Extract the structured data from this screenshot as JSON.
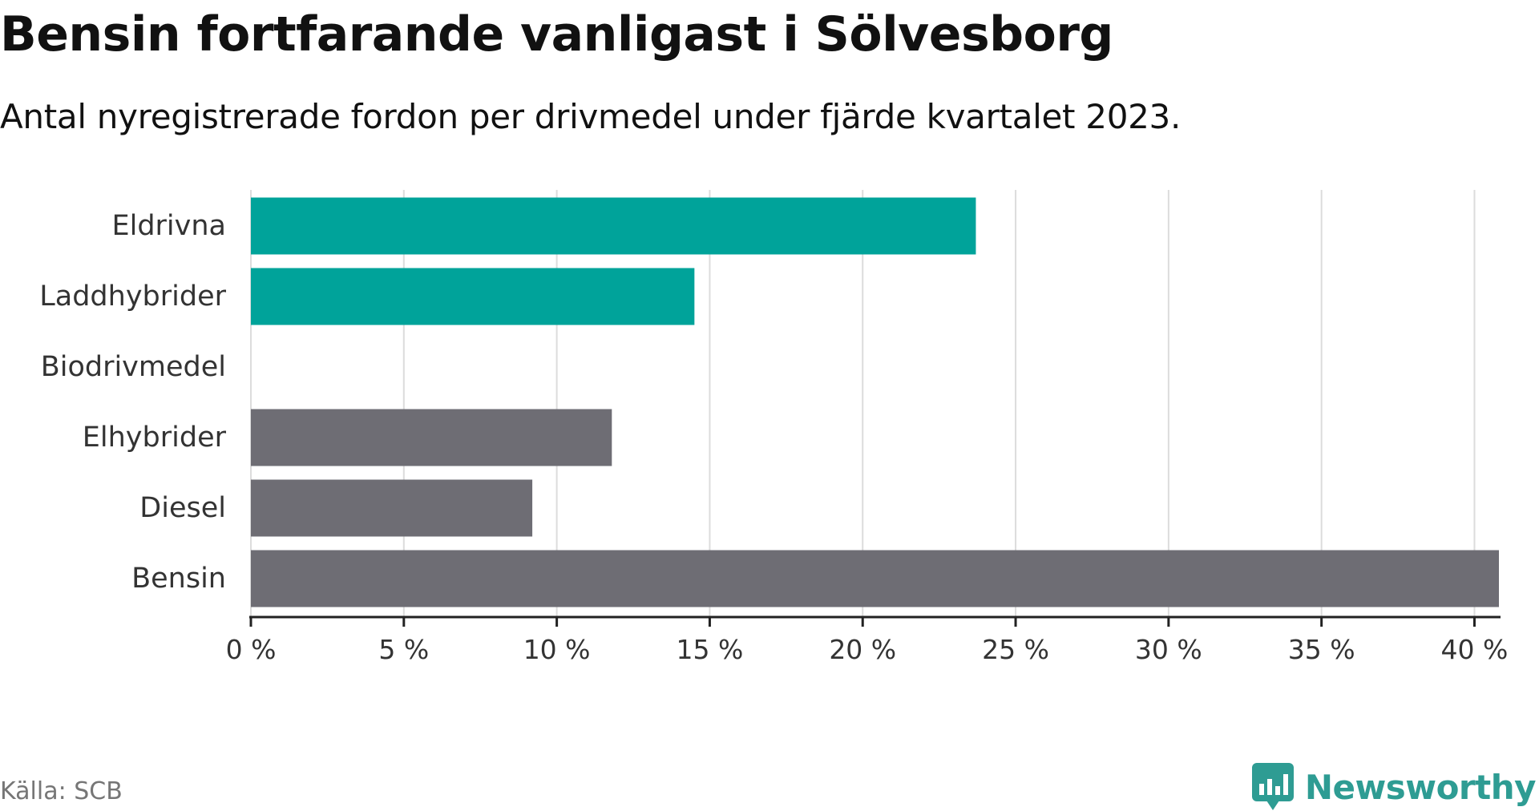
{
  "header": {
    "title": "Bensin fortfarande vanligast i Sölvesborg",
    "subtitle": "Antal nyregistrerade fordon per drivmedel under fjärde kvartalet 2023."
  },
  "footer": {
    "source": "Källa: SCB",
    "brand": "Newsworthy"
  },
  "colors": {
    "highlight": "#00a39a",
    "base": "#6e6d74",
    "grid": "#dcdcdc",
    "axis": "#222222",
    "brand": "#2e9c93"
  },
  "chart_data": {
    "type": "bar",
    "orientation": "horizontal",
    "title": "Bensin fortfarande vanligast i Sölvesborg",
    "subtitle": "Antal nyregistrerade fordon per drivmedel under fjärde kvartalet 2023.",
    "categories": [
      "Eldrivna",
      "Laddhybrider",
      "Biodrivmedel",
      "Elhybrider",
      "Diesel",
      "Bensin"
    ],
    "values": [
      23.7,
      14.5,
      0,
      11.8,
      9.2,
      40.8
    ],
    "highlight": [
      true,
      true,
      false,
      false,
      false,
      false
    ],
    "xlabel": "",
    "ylabel": "",
    "xlim": [
      0,
      40.8
    ],
    "xticks": [
      0,
      5,
      10,
      15,
      20,
      25,
      30,
      35,
      40
    ],
    "tick_labels": [
      "0 %",
      "5 %",
      "10 %",
      "15 %",
      "20 %",
      "25 %",
      "30 %",
      "35 %",
      "40 %"
    ],
    "unit": "%",
    "grid": true,
    "legend": "none"
  }
}
